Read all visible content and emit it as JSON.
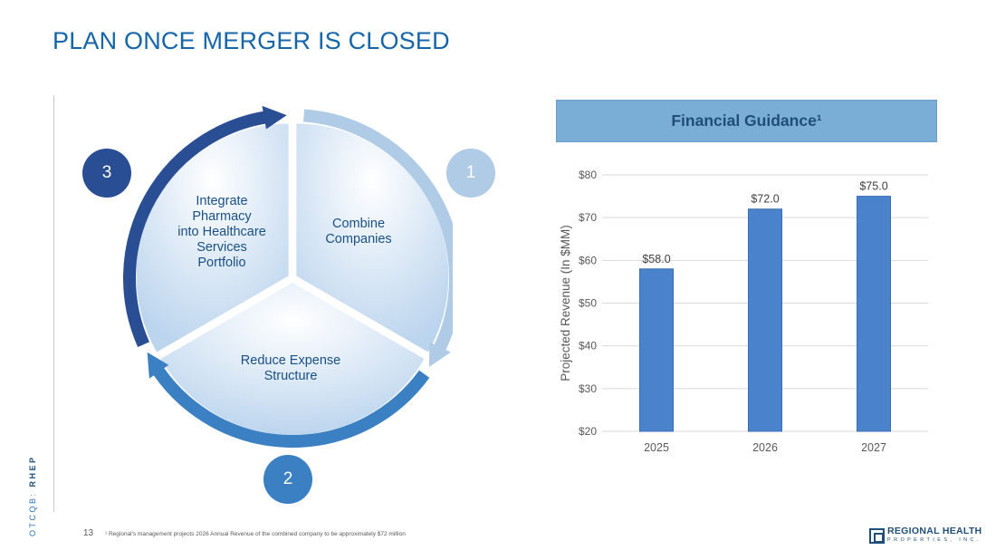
{
  "slide": {
    "title": "PLAN ONCE MERGER IS CLOSED",
    "ticker_prefix": "OTCQB: ",
    "ticker_symbol": "RHEP",
    "page_number": "13",
    "footnote": "¹ Regional's management projects 2026 Annual Revenue of the combined company to be approximately $72 million"
  },
  "cycle": {
    "steps": [
      {
        "number": "1",
        "label_lines": [
          "Combine",
          "Companies"
        ],
        "color": "#afcbe6"
      },
      {
        "number": "2",
        "label_lines": [
          "Reduce Expense",
          "Structure"
        ],
        "color": "#3b80c2"
      },
      {
        "number": "3",
        "label_lines": [
          "Integrate",
          "Pharmacy",
          "into Healthcare",
          "Services",
          "Portfolio"
        ],
        "color": "#2a4e94"
      }
    ]
  },
  "guidance": {
    "heading": "Financial Guidance¹"
  },
  "chart_data": {
    "type": "bar",
    "categories": [
      "2025",
      "2026",
      "2027"
    ],
    "values": [
      58.0,
      72.0,
      75.0
    ],
    "data_labels": [
      "$58.0",
      "$72.0",
      "$75.0"
    ],
    "title": "",
    "xlabel": "",
    "ylabel": "Projected Revenue (In $MM)",
    "ylim": [
      20,
      80
    ],
    "yticks": [
      20,
      30,
      40,
      50,
      60,
      70,
      80
    ],
    "ytick_labels": [
      "$20",
      "$30",
      "$40",
      "$50",
      "$60",
      "$70",
      "$80"
    ],
    "grid": true,
    "legend": "none",
    "bar_color": "#4a82cc"
  },
  "brand": {
    "name": "REGIONAL HEALTH",
    "sub": "PROPERTIES, INC."
  }
}
